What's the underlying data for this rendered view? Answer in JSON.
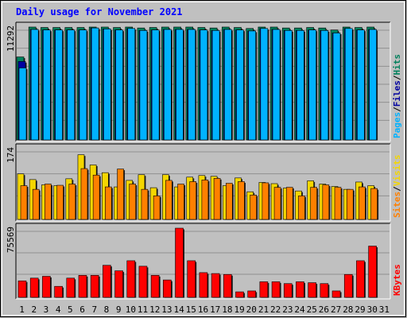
{
  "title": "Daily usage for November 2021",
  "colors": {
    "frame_bg": "#c0c0c0",
    "hits": "#00805c",
    "files": "#0000a0",
    "pages": "#00b2ff",
    "visits": "#f4d600",
    "sites": "#ff8000",
    "kbytes": "#ff0000",
    "weekend_day": "#00805c"
  },
  "separator": "/",
  "chart_data": [
    {
      "type": "bar",
      "panel": "hits-files-pages",
      "ymax_label": "11292",
      "ylim": [
        0,
        11292
      ],
      "categories": [
        "1",
        "2",
        "3",
        "4",
        "5",
        "6",
        "7",
        "8",
        "9",
        "10",
        "11",
        "12",
        "13",
        "14",
        "15",
        "16",
        "17",
        "18",
        "19",
        "20",
        "21",
        "22",
        "23",
        "24",
        "25",
        "26",
        "27",
        "28",
        "29",
        "30",
        "31"
      ],
      "series": [
        {
          "name": "Pages",
          "values": [
            7200,
            11050,
            11000,
            11000,
            11000,
            11000,
            11200,
            11100,
            11000,
            11150,
            10950,
            11000,
            11050,
            11050,
            11050,
            11000,
            10950,
            11050,
            11000,
            10900,
            11150,
            11050,
            10950,
            10950,
            11000,
            10950,
            10700,
            11150,
            11000,
            11050,
            0
          ]
        },
        {
          "name": "Files",
          "values": [
            7850,
            11050,
            11000,
            11000,
            11000,
            11000,
            11200,
            11100,
            11000,
            11150,
            10950,
            11000,
            11050,
            11050,
            11050,
            11000,
            10950,
            11050,
            11000,
            10900,
            11150,
            11050,
            10950,
            10950,
            11000,
            10950,
            10700,
            11150,
            11000,
            11050,
            0
          ]
        },
        {
          "name": "Hits",
          "values": [
            8300,
            11292,
            11250,
            11250,
            11250,
            11250,
            11292,
            11292,
            11250,
            11292,
            11200,
            11250,
            11292,
            11292,
            11292,
            11250,
            11200,
            11292,
            11250,
            11150,
            11292,
            11292,
            11200,
            11200,
            11250,
            11200,
            11000,
            11292,
            11250,
            11292,
            0
          ]
        }
      ],
      "legend": [
        "Pages",
        "Files",
        "Hits"
      ]
    },
    {
      "type": "bar",
      "panel": "sites-visits",
      "ymax_label": "174",
      "ylim": [
        0,
        174
      ],
      "categories": [
        "1",
        "2",
        "3",
        "4",
        "5",
        "6",
        "7",
        "8",
        "9",
        "10",
        "11",
        "12",
        "13",
        "14",
        "15",
        "16",
        "17",
        "18",
        "19",
        "20",
        "21",
        "22",
        "23",
        "24",
        "25",
        "26",
        "27",
        "28",
        "29",
        "30",
        "31"
      ],
      "series": [
        {
          "name": "Sites",
          "values": [
            83,
            74,
            87,
            84,
            87,
            125,
            109,
            80,
            124,
            87,
            74,
            58,
            96,
            87,
            93,
            97,
            101,
            89,
            93,
            60,
            90,
            79,
            79,
            58,
            79,
            85,
            79,
            74,
            80,
            76,
            0
          ]
        },
        {
          "name": "Visits",
          "values": [
            112,
            98,
            85,
            83,
            100,
            159,
            134,
            115,
            80,
            96,
            110,
            78,
            110,
            80,
            104,
            108,
            106,
            83,
            102,
            68,
            91,
            88,
            77,
            70,
            95,
            87,
            81,
            74,
            92,
            83,
            0
          ]
        }
      ],
      "legend": [
        "Sites",
        "Visits"
      ]
    },
    {
      "type": "bar",
      "panel": "kbytes",
      "ymax_label": "75569",
      "ylim": [
        0,
        75569
      ],
      "categories": [
        "1",
        "2",
        "3",
        "4",
        "5",
        "6",
        "7",
        "8",
        "9",
        "10",
        "11",
        "12",
        "13",
        "14",
        "15",
        "16",
        "17",
        "18",
        "19",
        "20",
        "21",
        "22",
        "23",
        "24",
        "25",
        "26",
        "27",
        "28",
        "29",
        "30",
        "31"
      ],
      "series": [
        {
          "name": "KBytes",
          "values": [
            18000,
            21000,
            23000,
            12000,
            21000,
            24000,
            24000,
            35000,
            29000,
            40000,
            34000,
            24000,
            19000,
            75569,
            40000,
            27000,
            26000,
            25000,
            6000,
            7000,
            17000,
            17000,
            15000,
            17000,
            16000,
            15000,
            7000,
            25000,
            40000,
            56000,
            0
          ]
        }
      ],
      "legend": [
        "KBytes"
      ]
    }
  ],
  "day_labels": [
    "1",
    "2",
    "3",
    "4",
    "5",
    "6",
    "7",
    "8",
    "9",
    "10",
    "11",
    "12",
    "13",
    "14",
    "15",
    "16",
    "17",
    "18",
    "19",
    "20",
    "21",
    "22",
    "23",
    "24",
    "25",
    "26",
    "27",
    "28",
    "29",
    "30",
    "31"
  ],
  "weekend_days": [
    "6",
    "7",
    "13",
    "14",
    "20",
    "21",
    "27",
    "28"
  ]
}
